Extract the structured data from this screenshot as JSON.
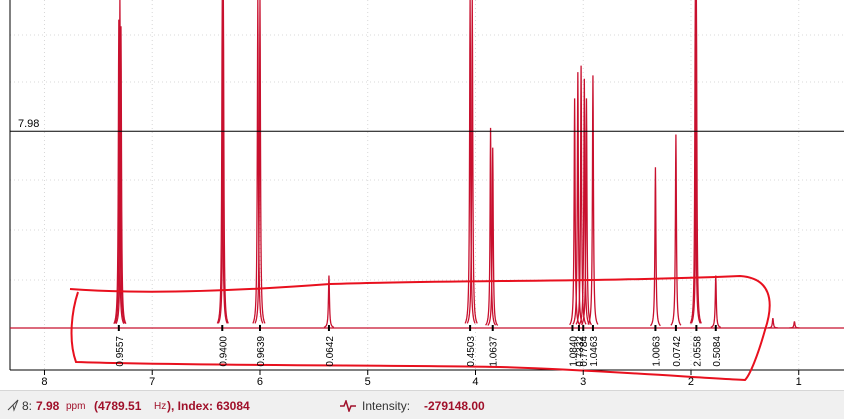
{
  "chart_data": {
    "type": "nmr",
    "xlim": [
      8.32,
      0.58
    ],
    "ylim": [
      -12.8,
      100
    ],
    "xticks": [
      8,
      7,
      6,
      5,
      4,
      3,
      2,
      1
    ],
    "grid": true,
    "color": "#c8102e",
    "cursor": {
      "label": "7.98",
      "value": 60
    },
    "peaks": {
      "x": [
        7.31,
        7.3,
        7.29,
        6.35,
        6.34,
        6.02,
        6.0,
        5.36,
        4.05,
        4.03,
        3.86,
        3.84,
        3.08,
        3.05,
        3.02,
        2.99,
        2.97,
        2.91,
        2.33,
        2.14,
        1.96,
        1.95,
        1.77,
        1.24,
        1.04
      ],
      "values": [
        94,
        100,
        92,
        100,
        100,
        100,
        100,
        16,
        100,
        100,
        61,
        55,
        70,
        78,
        80,
        76,
        70,
        77,
        49,
        59,
        100,
        100,
        16,
        3,
        2
      ]
    },
    "integrals": {
      "x": [
        7.31,
        6.35,
        6.0,
        5.36,
        4.05,
        3.84,
        3.1,
        3.04,
        3.0,
        2.91,
        2.33,
        2.14,
        1.95,
        1.77
      ],
      "labels": [
        "0.9557",
        "0.9400",
        "0.9639",
        "0.0642",
        "0.4503",
        "1.0637",
        "1.0840",
        "0.7332",
        "0.7784",
        "1.0463",
        "1.0063",
        "0.0742",
        "2.0558",
        "0.5084"
      ]
    },
    "status": {
      "index_label": "8:",
      "ppm": "7.98",
      "ppm_unit": "ppm",
      "hz": "(4789.51",
      "hz_unit": "Hz",
      "index_text": "), Index: 63084",
      "intensity_label": "Intensity:",
      "intensity": "-279148.00"
    }
  }
}
